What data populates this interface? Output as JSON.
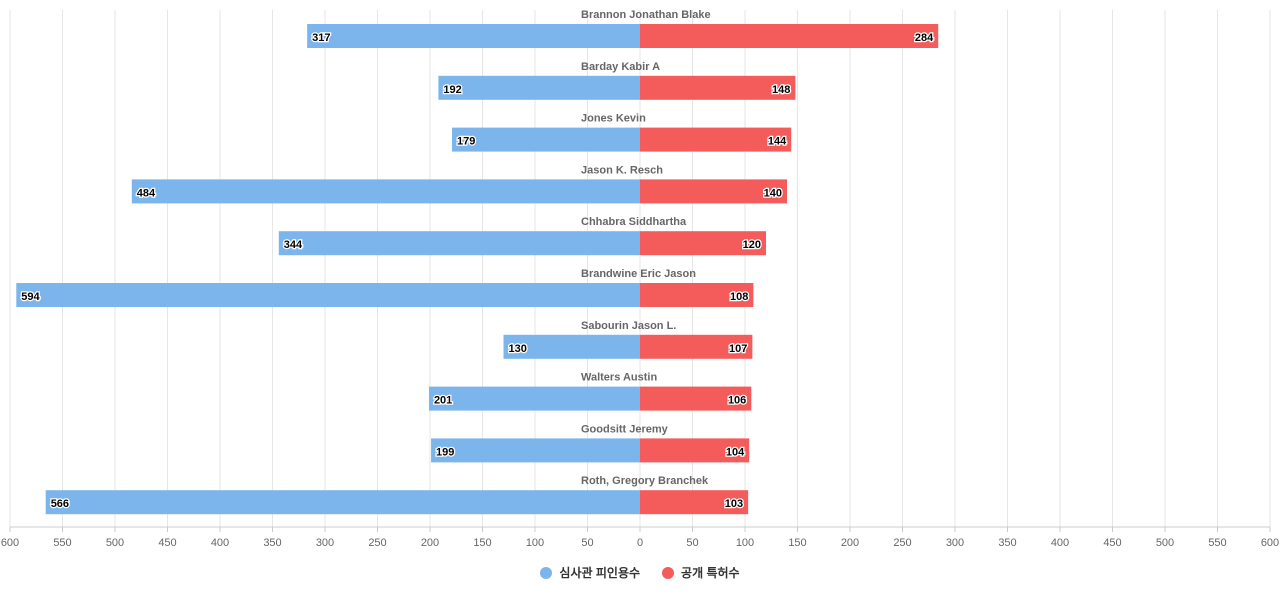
{
  "chart_data": {
    "type": "bar",
    "orientation": "horizontal-diverging",
    "categories": [
      "Brannon Jonathan Blake",
      "Barday Kabir A",
      "Jones Kevin",
      "Jason K. Resch",
      "Chhabra Siddhartha",
      "Brandwine Eric Jason",
      "Sabourin Jason L.",
      "Walters Austin",
      "Goodsitt Jeremy",
      "Roth, Gregory Branchek"
    ],
    "series": [
      {
        "name": "심사관 피인용수",
        "color": "#7cb5ec",
        "side": "left",
        "values": [
          317,
          192,
          179,
          484,
          344,
          594,
          130,
          201,
          199,
          566
        ]
      },
      {
        "name": "공개 특허수",
        "color": "#f45b5b",
        "side": "right",
        "values": [
          284,
          148,
          144,
          140,
          120,
          108,
          107,
          106,
          104,
          103
        ]
      }
    ],
    "xlim": [
      -600,
      600
    ],
    "ticks": [
      "600",
      "550",
      "500",
      "450",
      "400",
      "350",
      "300",
      "250",
      "200",
      "150",
      "100",
      "50",
      "0",
      "50",
      "100",
      "150",
      "200",
      "250",
      "300",
      "350",
      "400",
      "450",
      "500",
      "550",
      "600"
    ],
    "grid": true,
    "legend": "bottom"
  }
}
